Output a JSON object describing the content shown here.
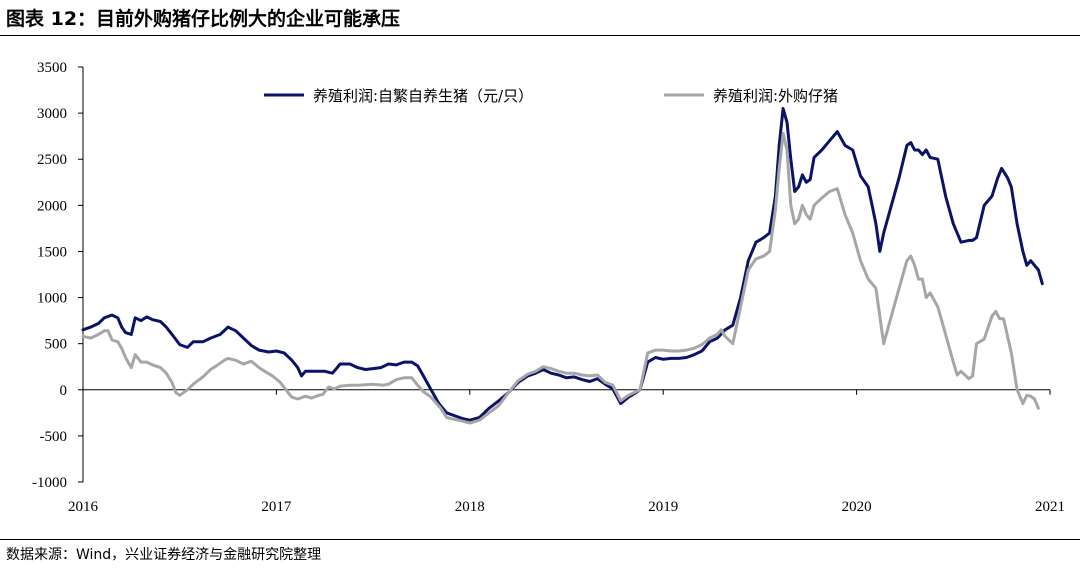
{
  "title": "图表 12：目前外购猪仔比例大的企业可能承压",
  "source": "数据来源：Wind，兴业证券经济与金融研究院整理",
  "chart_data": {
    "type": "line",
    "xlim": [
      2016.0,
      2021.0
    ],
    "ylim": [
      -1000,
      3500
    ],
    "x_ticks": [
      "2016",
      "2017",
      "2018",
      "2019",
      "2020",
      "2021"
    ],
    "y_ticks": [
      "3500",
      "3000",
      "2500",
      "2000",
      "1500",
      "1000",
      "500",
      "0",
      "-500",
      "-1000"
    ],
    "legend_position": "top",
    "grid": false,
    "series": [
      {
        "name": "养殖利润:自繁自养生猪（元/只）",
        "color": "#0b1366",
        "points": [
          [
            2016.0,
            650
          ],
          [
            2016.04,
            680
          ],
          [
            2016.08,
            720
          ],
          [
            2016.11,
            780
          ],
          [
            2016.15,
            810
          ],
          [
            2016.18,
            780
          ],
          [
            2016.2,
            680
          ],
          [
            2016.22,
            620
          ],
          [
            2016.25,
            600
          ],
          [
            2016.27,
            780
          ],
          [
            2016.3,
            750
          ],
          [
            2016.33,
            790
          ],
          [
            2016.36,
            760
          ],
          [
            2016.4,
            740
          ],
          [
            2016.43,
            680
          ],
          [
            2016.46,
            600
          ],
          [
            2016.5,
            490
          ],
          [
            2016.54,
            460
          ],
          [
            2016.57,
            520
          ],
          [
            2016.62,
            520
          ],
          [
            2016.66,
            560
          ],
          [
            2016.71,
            600
          ],
          [
            2016.75,
            680
          ],
          [
            2016.79,
            640
          ],
          [
            2016.83,
            560
          ],
          [
            2016.87,
            480
          ],
          [
            2016.91,
            430
          ],
          [
            2016.96,
            410
          ],
          [
            2017.0,
            420
          ],
          [
            2017.04,
            400
          ],
          [
            2017.08,
            320
          ],
          [
            2017.11,
            240
          ],
          [
            2017.13,
            150
          ],
          [
            2017.15,
            200
          ],
          [
            2017.2,
            200
          ],
          [
            2017.25,
            200
          ],
          [
            2017.29,
            180
          ],
          [
            2017.33,
            280
          ],
          [
            2017.38,
            280
          ],
          [
            2017.42,
            240
          ],
          [
            2017.46,
            220
          ],
          [
            2017.5,
            230
          ],
          [
            2017.54,
            240
          ],
          [
            2017.58,
            280
          ],
          [
            2017.62,
            270
          ],
          [
            2017.66,
            300
          ],
          [
            2017.7,
            300
          ],
          [
            2017.73,
            260
          ],
          [
            2017.76,
            150
          ],
          [
            2017.8,
            0
          ],
          [
            2017.84,
            -150
          ],
          [
            2017.88,
            -250
          ],
          [
            2017.92,
            -280
          ],
          [
            2017.96,
            -310
          ],
          [
            2018.0,
            -330
          ],
          [
            2018.05,
            -300
          ],
          [
            2018.1,
            -200
          ],
          [
            2018.15,
            -120
          ],
          [
            2018.2,
            -30
          ],
          [
            2018.25,
            80
          ],
          [
            2018.3,
            150
          ],
          [
            2018.34,
            180
          ],
          [
            2018.38,
            220
          ],
          [
            2018.42,
            180
          ],
          [
            2018.46,
            160
          ],
          [
            2018.5,
            130
          ],
          [
            2018.54,
            140
          ],
          [
            2018.58,
            110
          ],
          [
            2018.62,
            90
          ],
          [
            2018.66,
            120
          ],
          [
            2018.7,
            60
          ],
          [
            2018.74,
            10
          ],
          [
            2018.78,
            -150
          ],
          [
            2018.82,
            -80
          ],
          [
            2018.86,
            -30
          ],
          [
            2018.88,
            0
          ],
          [
            2018.92,
            300
          ],
          [
            2018.96,
            350
          ],
          [
            2019.0,
            330
          ],
          [
            2019.04,
            340
          ],
          [
            2019.08,
            340
          ],
          [
            2019.12,
            350
          ],
          [
            2019.16,
            380
          ],
          [
            2019.2,
            420
          ],
          [
            2019.24,
            520
          ],
          [
            2019.28,
            560
          ],
          [
            2019.32,
            650
          ],
          [
            2019.36,
            700
          ],
          [
            2019.4,
            1000
          ],
          [
            2019.44,
            1400
          ],
          [
            2019.48,
            1600
          ],
          [
            2019.52,
            1650
          ],
          [
            2019.55,
            1700
          ],
          [
            2019.58,
            2100
          ],
          [
            2019.6,
            2650
          ],
          [
            2019.62,
            3050
          ],
          [
            2019.64,
            2900
          ],
          [
            2019.66,
            2500
          ],
          [
            2019.68,
            2150
          ],
          [
            2019.7,
            2200
          ],
          [
            2019.72,
            2330
          ],
          [
            2019.74,
            2250
          ],
          [
            2019.76,
            2280
          ],
          [
            2019.78,
            2520
          ],
          [
            2019.82,
            2600
          ],
          [
            2019.86,
            2700
          ],
          [
            2019.9,
            2800
          ],
          [
            2019.94,
            2650
          ],
          [
            2019.98,
            2600
          ],
          [
            2020.02,
            2320
          ],
          [
            2020.06,
            2200
          ],
          [
            2020.08,
            2000
          ],
          [
            2020.1,
            1800
          ],
          [
            2020.12,
            1500
          ],
          [
            2020.14,
            1700
          ],
          [
            2020.18,
            2000
          ],
          [
            2020.22,
            2300
          ],
          [
            2020.26,
            2650
          ],
          [
            2020.28,
            2680
          ],
          [
            2020.3,
            2600
          ],
          [
            2020.32,
            2600
          ],
          [
            2020.34,
            2550
          ],
          [
            2020.36,
            2600
          ],
          [
            2020.38,
            2520
          ],
          [
            2020.42,
            2500
          ],
          [
            2020.46,
            2100
          ],
          [
            2020.5,
            1800
          ],
          [
            2020.54,
            1600
          ],
          [
            2020.58,
            1620
          ],
          [
            2020.6,
            1620
          ],
          [
            2020.62,
            1650
          ],
          [
            2020.66,
            2000
          ],
          [
            2020.7,
            2100
          ],
          [
            2020.73,
            2300
          ],
          [
            2020.75,
            2400
          ],
          [
            2020.78,
            2300
          ],
          [
            2020.8,
            2200
          ],
          [
            2020.83,
            1800
          ],
          [
            2020.86,
            1500
          ],
          [
            2020.88,
            1350
          ],
          [
            2020.9,
            1400
          ],
          [
            2020.92,
            1350
          ],
          [
            2020.94,
            1300
          ],
          [
            2020.96,
            1150
          ]
        ]
      },
      {
        "name": "养殖利润:外购仔猪",
        "color": "#a6a6a6",
        "points": [
          [
            2016.0,
            580
          ],
          [
            2016.04,
            560
          ],
          [
            2016.08,
            600
          ],
          [
            2016.11,
            640
          ],
          [
            2016.13,
            640
          ],
          [
            2016.15,
            540
          ],
          [
            2016.18,
            520
          ],
          [
            2016.2,
            450
          ],
          [
            2016.22,
            350
          ],
          [
            2016.25,
            240
          ],
          [
            2016.27,
            380
          ],
          [
            2016.3,
            300
          ],
          [
            2016.33,
            300
          ],
          [
            2016.36,
            270
          ],
          [
            2016.4,
            240
          ],
          [
            2016.43,
            180
          ],
          [
            2016.46,
            80
          ],
          [
            2016.48,
            -30
          ],
          [
            2016.5,
            -60
          ],
          [
            2016.54,
            0
          ],
          [
            2016.57,
            60
          ],
          [
            2016.62,
            140
          ],
          [
            2016.66,
            220
          ],
          [
            2016.69,
            260
          ],
          [
            2016.73,
            320
          ],
          [
            2016.75,
            340
          ],
          [
            2016.79,
            320
          ],
          [
            2016.83,
            280
          ],
          [
            2016.87,
            310
          ],
          [
            2016.91,
            240
          ],
          [
            2016.94,
            200
          ],
          [
            2016.98,
            150
          ],
          [
            2017.02,
            80
          ],
          [
            2017.06,
            -30
          ],
          [
            2017.08,
            -80
          ],
          [
            2017.11,
            -100
          ],
          [
            2017.15,
            -70
          ],
          [
            2017.18,
            -90
          ],
          [
            2017.22,
            -60
          ],
          [
            2017.24,
            -50
          ],
          [
            2017.27,
            30
          ],
          [
            2017.3,
            10
          ],
          [
            2017.33,
            40
          ],
          [
            2017.38,
            50
          ],
          [
            2017.42,
            50
          ],
          [
            2017.5,
            60
          ],
          [
            2017.55,
            50
          ],
          [
            2017.58,
            60
          ],
          [
            2017.62,
            110
          ],
          [
            2017.66,
            130
          ],
          [
            2017.7,
            130
          ],
          [
            2017.73,
            50
          ],
          [
            2017.76,
            -20
          ],
          [
            2017.8,
            -80
          ],
          [
            2017.85,
            -200
          ],
          [
            2017.88,
            -300
          ],
          [
            2017.92,
            -320
          ],
          [
            2017.96,
            -340
          ],
          [
            2018.0,
            -360
          ],
          [
            2018.05,
            -330
          ],
          [
            2018.1,
            -250
          ],
          [
            2018.15,
            -170
          ],
          [
            2018.2,
            -30
          ],
          [
            2018.25,
            100
          ],
          [
            2018.3,
            170
          ],
          [
            2018.34,
            200
          ],
          [
            2018.38,
            250
          ],
          [
            2018.42,
            230
          ],
          [
            2018.46,
            200
          ],
          [
            2018.5,
            180
          ],
          [
            2018.54,
            180
          ],
          [
            2018.58,
            160
          ],
          [
            2018.62,
            150
          ],
          [
            2018.66,
            160
          ],
          [
            2018.7,
            80
          ],
          [
            2018.74,
            50
          ],
          [
            2018.78,
            -120
          ],
          [
            2018.82,
            -60
          ],
          [
            2018.86,
            -20
          ],
          [
            2018.88,
            0
          ],
          [
            2018.92,
            400
          ],
          [
            2018.96,
            430
          ],
          [
            2019.0,
            430
          ],
          [
            2019.04,
            420
          ],
          [
            2019.08,
            420
          ],
          [
            2019.12,
            430
          ],
          [
            2019.16,
            450
          ],
          [
            2019.2,
            490
          ],
          [
            2019.24,
            560
          ],
          [
            2019.28,
            600
          ],
          [
            2019.3,
            650
          ],
          [
            2019.32,
            580
          ],
          [
            2019.36,
            500
          ],
          [
            2019.4,
            900
          ],
          [
            2019.44,
            1300
          ],
          [
            2019.48,
            1420
          ],
          [
            2019.52,
            1450
          ],
          [
            2019.55,
            1500
          ],
          [
            2019.58,
            1950
          ],
          [
            2019.6,
            2400
          ],
          [
            2019.62,
            2780
          ],
          [
            2019.64,
            2600
          ],
          [
            2019.66,
            2000
          ],
          [
            2019.68,
            1800
          ],
          [
            2019.7,
            1850
          ],
          [
            2019.72,
            2000
          ],
          [
            2019.74,
            1900
          ],
          [
            2019.76,
            1850
          ],
          [
            2019.78,
            2000
          ],
          [
            2019.82,
            2080
          ],
          [
            2019.86,
            2150
          ],
          [
            2019.9,
            2180
          ],
          [
            2019.94,
            1900
          ],
          [
            2019.98,
            1700
          ],
          [
            2020.02,
            1400
          ],
          [
            2020.06,
            1200
          ],
          [
            2020.08,
            1150
          ],
          [
            2020.1,
            1100
          ],
          [
            2020.12,
            800
          ],
          [
            2020.14,
            500
          ],
          [
            2020.18,
            800
          ],
          [
            2020.22,
            1100
          ],
          [
            2020.26,
            1400
          ],
          [
            2020.28,
            1450
          ],
          [
            2020.3,
            1350
          ],
          [
            2020.32,
            1200
          ],
          [
            2020.34,
            1200
          ],
          [
            2020.36,
            1000
          ],
          [
            2020.38,
            1050
          ],
          [
            2020.42,
            900
          ],
          [
            2020.46,
            600
          ],
          [
            2020.5,
            300
          ],
          [
            2020.52,
            160
          ],
          [
            2020.54,
            200
          ],
          [
            2020.58,
            120
          ],
          [
            2020.6,
            150
          ],
          [
            2020.62,
            500
          ],
          [
            2020.66,
            550
          ],
          [
            2020.7,
            800
          ],
          [
            2020.72,
            850
          ],
          [
            2020.74,
            770
          ],
          [
            2020.76,
            770
          ],
          [
            2020.8,
            400
          ],
          [
            2020.83,
            0
          ],
          [
            2020.86,
            -150
          ],
          [
            2020.88,
            -60
          ],
          [
            2020.9,
            -70
          ],
          [
            2020.92,
            -100
          ],
          [
            2020.94,
            -200
          ]
        ]
      }
    ]
  }
}
